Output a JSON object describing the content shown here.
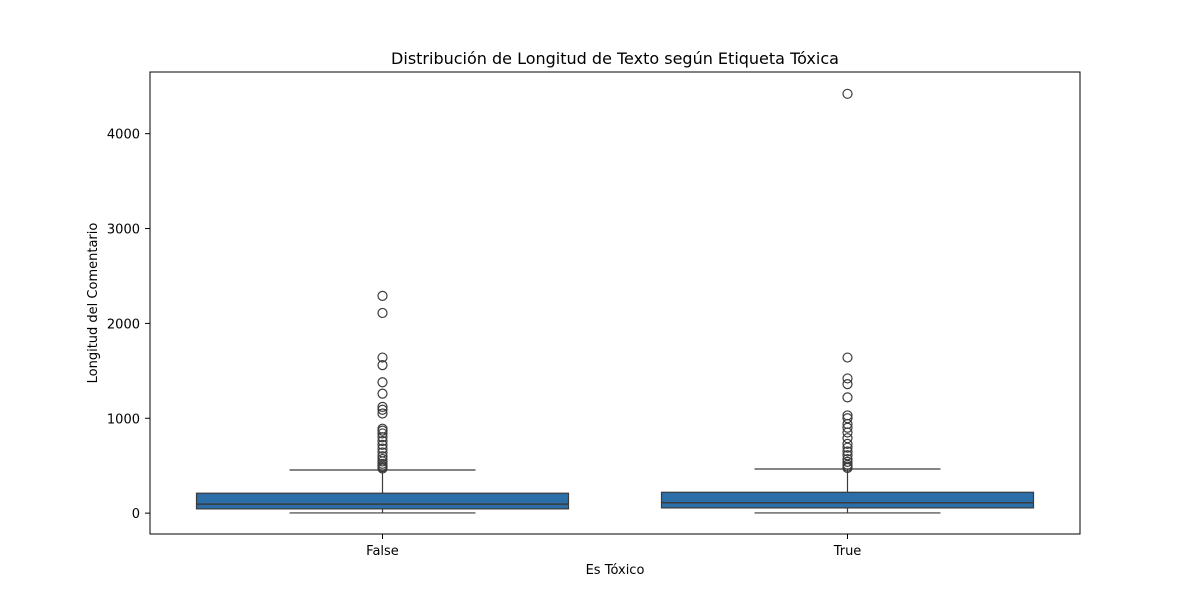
{
  "chart_data": {
    "type": "box",
    "title": "Distribución de Longitud de Texto según Etiqueta Tóxica",
    "xlabel": "Es Tóxico",
    "ylabel": "Longitud del Comentario",
    "ylim": [
      -220,
      4650
    ],
    "yticks": [
      0,
      1000,
      2000,
      3000,
      4000
    ],
    "box_color": "#2c6fa8",
    "line_color": "#3b3b3b",
    "categories": [
      "False",
      "True"
    ],
    "boxes": [
      {
        "label": "False",
        "whisker_low": 2,
        "q1": 45,
        "median": 95,
        "q3": 210,
        "whisker_high": 455,
        "outliers": [
          470,
          485,
          500,
          520,
          545,
          570,
          600,
          640,
          680,
          720,
          760,
          800,
          840,
          870,
          890,
          1050,
          1090,
          1120,
          1260,
          1380,
          1560,
          1640,
          2110,
          2290
        ]
      },
      {
        "label": "True",
        "whisker_low": 2,
        "q1": 55,
        "median": 110,
        "q3": 220,
        "whisker_high": 465,
        "outliers": [
          475,
          490,
          510,
          540,
          570,
          610,
          650,
          690,
          730,
          790,
          850,
          900,
          940,
          1000,
          1030,
          1220,
          1360,
          1420,
          1640,
          4420
        ]
      }
    ]
  }
}
